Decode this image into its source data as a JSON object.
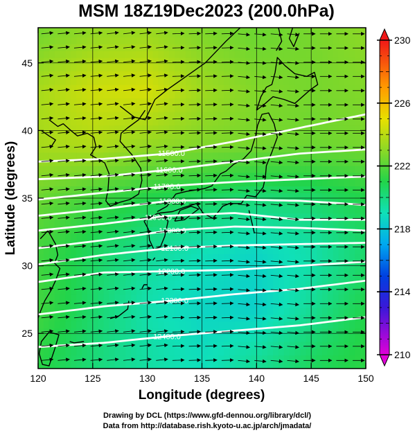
{
  "chart_data": {
    "type": "heatmap",
    "title": "MSM 18Z19Dec2023 (200.0hPa)",
    "xlabel": "Longitude (degrees)",
    "ylabel": "Latitude  (degrees)",
    "xlim": [
      120,
      150
    ],
    "ylim": [
      22.4,
      47.6
    ],
    "xticks": [
      120,
      125,
      130,
      135,
      140,
      145,
      150
    ],
    "xtick_labels": [
      "120",
      "125",
      "130",
      "135",
      "140",
      "145",
      "150"
    ],
    "yticks": [
      25,
      30,
      35,
      40,
      45
    ],
    "ytick_labels": [
      "25",
      "30",
      "35",
      "40",
      "45"
    ],
    "colorbar": {
      "min": 210,
      "max": 230,
      "ticks": [
        210,
        214,
        218,
        222,
        226,
        230
      ],
      "tick_labels": [
        "210",
        "214",
        "218",
        "222",
        "226",
        "230"
      ],
      "stops": [
        {
          "value": 210,
          "color": "#e000d8"
        },
        {
          "value": 213,
          "color": "#3a18d8"
        },
        {
          "value": 215,
          "color": "#0040e0"
        },
        {
          "value": 217,
          "color": "#00a8f0"
        },
        {
          "value": 219,
          "color": "#10e0b8"
        },
        {
          "value": 221,
          "color": "#22d44a"
        },
        {
          "value": 223,
          "color": "#8cd826"
        },
        {
          "value": 225,
          "color": "#e8e000"
        },
        {
          "value": 227,
          "color": "#ff9a00"
        },
        {
          "value": 230,
          "color": "#f01818"
        }
      ]
    },
    "temperature_field": {
      "lon": [
        120,
        125,
        130,
        135,
        140,
        145,
        150
      ],
      "lat": [
        23,
        27,
        31,
        35,
        39,
        43,
        47
      ],
      "values": [
        [
          221.2,
          220.2,
          219.4,
          218.9,
          219.6,
          220.6,
          221.2
        ],
        [
          221.6,
          220.4,
          219.2,
          218.6,
          218.4,
          219.6,
          221.0
        ],
        [
          221.6,
          220.6,
          219.6,
          219.0,
          218.6,
          219.2,
          220.4
        ],
        [
          222.4,
          221.6,
          221.0,
          220.6,
          220.2,
          220.4,
          221.0
        ],
        [
          223.6,
          223.8,
          223.2,
          222.8,
          222.6,
          222.4,
          222.6
        ],
        [
          223.6,
          224.4,
          224.6,
          223.4,
          222.8,
          222.6,
          222.8
        ],
        [
          222.6,
          223.2,
          223.4,
          222.8,
          222.4,
          222.6,
          223.0
        ]
      ]
    },
    "contours": [
      {
        "label": "11500.0",
        "lat": [
          37.7,
          37.9,
          38.3,
          39.2,
          40.2,
          41.2
        ],
        "label_lon": 132.2
      },
      {
        "label": "11600.0",
        "lat": [
          36.4,
          36.6,
          37.1,
          37.7,
          38.3,
          38.6
        ],
        "label_lon": 132.0
      },
      {
        "label": "11700.0",
        "lat": [
          34.9,
          35.4,
          35.9,
          36.2,
          36.4,
          36.6
        ],
        "label_lon": 131.8
      },
      {
        "label": "11800.0",
        "lat": [
          33.7,
          34.2,
          34.8,
          34.9,
          34.8,
          34.5
        ],
        "label_lon": 132.3
      },
      {
        "label": "11900.0",
        "lat": [
          32.6,
          33.1,
          33.7,
          33.9,
          33.4,
          33.4
        ],
        "label_lon": 131.0
      },
      {
        "label": "12000.0",
        "lat": [
          31.3,
          31.9,
          32.6,
          32.9,
          32.8,
          32.6
        ],
        "label_lon": 132.3
      },
      {
        "label": "12100.0",
        "lat": [
          30.1,
          30.8,
          31.3,
          31.5,
          31.6,
          31.7
        ],
        "label_lon": 132.5
      },
      {
        "label": "12200.0",
        "lat": [
          28.8,
          29.5,
          29.6,
          29.7,
          30.0,
          30.3
        ],
        "label_lon": 132.2
      },
      {
        "label": "12300.0",
        "lat": [
          26.4,
          27.0,
          27.4,
          27.9,
          28.3,
          28.9
        ],
        "label_lon": 132.5
      },
      {
        "label": "12400.0",
        "lat": [
          24.0,
          24.3,
          24.8,
          25.2,
          25.6,
          26.2
        ],
        "label_lon": 131.8
      }
    ],
    "contour_lon": [
      120,
      126,
      132,
      138,
      144,
      150
    ],
    "coastlines": [
      [
        [
          127.5,
          41.8
        ],
        [
          128.8,
          41.0
        ],
        [
          129.8,
          40.8
        ],
        [
          130.7,
          42.3
        ],
        [
          131.8,
          43.0
        ],
        [
          133.2,
          43.8
        ],
        [
          135.3,
          45.0
        ],
        [
          137.2,
          46.6
        ],
        [
          138.5,
          47.6
        ]
      ],
      [
        [
          121.0,
          40.8
        ],
        [
          121.8,
          40.3
        ],
        [
          122.3,
          40.5
        ],
        [
          123.0,
          40.0
        ],
        [
          123.6,
          39.6
        ],
        [
          124.5,
          39.8
        ],
        [
          125.1,
          39.5
        ],
        [
          125.3,
          38.8
        ],
        [
          124.8,
          38.2
        ],
        [
          126.1,
          37.6
        ],
        [
          126.5,
          36.8
        ],
        [
          126.4,
          35.6
        ],
        [
          126.2,
          34.8
        ],
        [
          126.6,
          34.4
        ],
        [
          127.5,
          34.7
        ],
        [
          128.4,
          34.9
        ],
        [
          129.2,
          35.3
        ],
        [
          129.5,
          36.3
        ],
        [
          129.4,
          37.2
        ],
        [
          128.6,
          38.2
        ],
        [
          127.5,
          39.2
        ],
        [
          127.6,
          39.8
        ],
        [
          128.2,
          40.2
        ],
        [
          129.2,
          40.8
        ],
        [
          129.8,
          41.5
        ]
      ],
      [
        [
          120.2,
          32.0
        ],
        [
          120.9,
          32.6
        ],
        [
          121.6,
          31.6
        ],
        [
          121.8,
          30.8
        ],
        [
          121.5,
          30.2
        ],
        [
          122.0,
          29.8
        ],
        [
          121.6,
          28.9
        ],
        [
          121.2,
          28.2
        ],
        [
          120.6,
          27.4
        ],
        [
          120.2,
          26.6
        ],
        [
          119.8,
          25.7
        ]
      ],
      [
        [
          121.2,
          38.8
        ],
        [
          121.6,
          39.3
        ],
        [
          121.0,
          39.6
        ],
        [
          120.3,
          40.0
        ]
      ],
      [
        [
          130.9,
          34.0
        ],
        [
          131.8,
          34.4
        ],
        [
          132.6,
          35.3
        ],
        [
          133.6,
          35.5
        ],
        [
          135.2,
          35.7
        ],
        [
          135.9,
          35.9
        ],
        [
          136.7,
          36.8
        ],
        [
          137.2,
          37.0
        ],
        [
          137.9,
          37.5
        ],
        [
          138.8,
          37.9
        ],
        [
          139.5,
          38.5
        ],
        [
          139.9,
          39.6
        ],
        [
          140.1,
          40.4
        ],
        [
          140.5,
          41.2
        ],
        [
          141.1,
          41.3
        ],
        [
          141.6,
          40.5
        ],
        [
          141.9,
          39.5
        ],
        [
          141.4,
          38.4
        ],
        [
          140.9,
          37.4
        ],
        [
          140.8,
          36.5
        ],
        [
          140.6,
          35.8
        ],
        [
          139.9,
          35.1
        ],
        [
          139.1,
          35.2
        ],
        [
          138.6,
          34.6
        ],
        [
          137.5,
          34.6
        ],
        [
          136.9,
          34.4
        ],
        [
          136.0,
          33.5
        ],
        [
          135.1,
          33.9
        ],
        [
          134.5,
          34.6
        ],
        [
          133.3,
          34.3
        ],
        [
          132.3,
          34.0
        ],
        [
          131.1,
          33.9
        ]
      ],
      [
        [
          129.7,
          33.3
        ],
        [
          130.3,
          33.6
        ],
        [
          131.0,
          33.9
        ],
        [
          131.9,
          33.3
        ],
        [
          131.6,
          32.2
        ],
        [
          131.2,
          31.4
        ],
        [
          130.6,
          31.2
        ],
        [
          130.2,
          31.9
        ],
        [
          130.1,
          32.7
        ],
        [
          129.7,
          33.3
        ]
      ],
      [
        [
          132.5,
          33.3
        ],
        [
          133.4,
          33.4
        ],
        [
          134.2,
          33.9
        ],
        [
          134.7,
          34.2
        ],
        [
          134.0,
          34.4
        ],
        [
          133.0,
          34.1
        ],
        [
          132.5,
          33.3
        ]
      ],
      [
        [
          140.0,
          41.5
        ],
        [
          140.4,
          42.5
        ],
        [
          140.9,
          43.2
        ],
        [
          141.4,
          43.4
        ],
        [
          141.7,
          44.3
        ],
        [
          141.9,
          45.4
        ],
        [
          142.6,
          44.8
        ],
        [
          143.5,
          44.2
        ],
        [
          144.6,
          44.0
        ],
        [
          145.3,
          44.3
        ],
        [
          145.6,
          43.4
        ],
        [
          144.9,
          43.0
        ],
        [
          143.5,
          42.0
        ],
        [
          142.5,
          42.3
        ],
        [
          141.5,
          42.5
        ],
        [
          140.8,
          42.0
        ],
        [
          140.0,
          41.5
        ]
      ],
      [
        [
          141.8,
          45.9
        ],
        [
          142.3,
          46.6
        ],
        [
          142.0,
          47.6
        ]
      ],
      [
        [
          143.3,
          47.6
        ],
        [
          143.0,
          46.8
        ],
        [
          143.4,
          46.2
        ],
        [
          143.9,
          47.2
        ]
      ],
      [
        [
          121.0,
          25.1
        ],
        [
          121.9,
          24.9
        ],
        [
          121.5,
          23.8
        ],
        [
          121.0,
          22.6
        ],
        [
          120.4,
          22.7
        ],
        [
          120.1,
          23.5
        ],
        [
          120.3,
          24.4
        ],
        [
          121.0,
          25.1
        ]
      ],
      [
        [
          122.9,
          24.4
        ],
        [
          123.3,
          24.3
        ],
        [
          124.2,
          24.4
        ]
      ],
      [
        [
          126.6,
          26.1
        ],
        [
          127.4,
          26.3
        ],
        [
          128.2,
          26.8
        ],
        [
          128.3,
          27.4
        ]
      ],
      [
        [
          129.5,
          28.3
        ],
        [
          129.7,
          28.6
        ],
        [
          130.0,
          28.6
        ]
      ],
      [
        [
          130.5,
          30.4
        ],
        [
          130.7,
          30.6
        ]
      ],
      [
        [
          139.3,
          34.1
        ],
        [
          139.6,
          33.1
        ],
        [
          139.8,
          32.4
        ]
      ]
    ]
  },
  "credits": {
    "line1": "Drawing by DCL (https://www.gfd-dennou.org/library/dcl/)",
    "line2": "Data from http://database.rish.kyoto-u.ac.jp/arch/jmadata/"
  }
}
